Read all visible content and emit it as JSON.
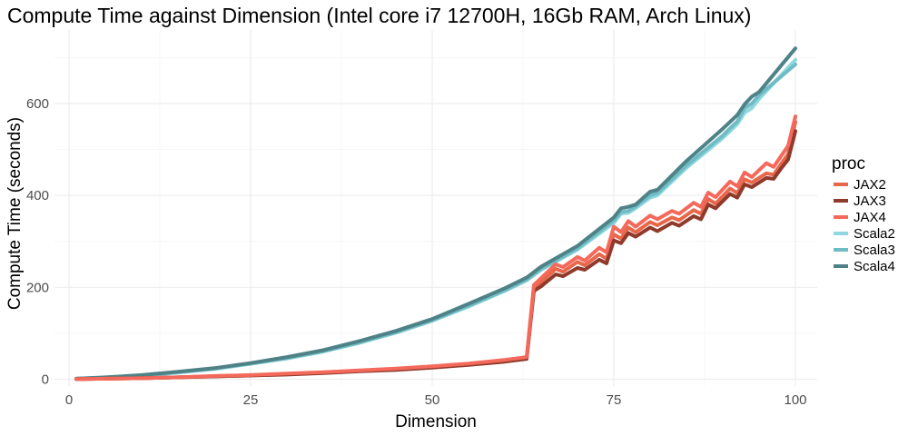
{
  "chart_data": {
    "type": "line",
    "title": "Compute Time against Dimension (Intel core i7 12700H, 16Gb RAM, Arch Linux)",
    "xlabel": "Dimension",
    "ylabel": "Compute Time (seconds)",
    "xlim": [
      -2,
      103
    ],
    "ylim": [
      -15,
      760
    ],
    "x_ticks": [
      0,
      25,
      50,
      75,
      100
    ],
    "y_ticks": [
      0,
      200,
      400,
      600
    ],
    "x_minor": [
      12.5,
      37.5,
      62.5,
      87.5
    ],
    "y_minor": [
      100,
      300,
      500,
      700
    ],
    "grid": true,
    "legend_title": "proc",
    "legend_position": "right",
    "series": [
      {
        "name": "JAX2",
        "color": "#e8674a",
        "x": [
          1,
          5,
          10,
          15,
          20,
          25,
          30,
          35,
          40,
          45,
          50,
          55,
          60,
          63,
          64,
          65,
          67,
          68,
          70,
          71,
          73,
          74,
          75,
          76,
          77,
          78,
          80,
          81,
          83,
          84,
          86,
          87,
          88,
          89,
          91,
          92,
          93,
          94,
          96,
          97,
          98,
          99,
          100
        ],
        "y": [
          0,
          1,
          2,
          4,
          6,
          8,
          11,
          14,
          18,
          21,
          26,
          32,
          40,
          46,
          198,
          212,
          240,
          234,
          255,
          248,
          272,
          262,
          315,
          306,
          330,
          320,
          342,
          335,
          352,
          346,
          368,
          360,
          392,
          382,
          415,
          405,
          435,
          428,
          448,
          445,
          468,
          490,
          560
        ]
      },
      {
        "name": "JAX3",
        "color": "#8f3a2b",
        "x": [
          1,
          5,
          10,
          15,
          20,
          25,
          30,
          35,
          40,
          45,
          50,
          55,
          60,
          63,
          64,
          65,
          67,
          68,
          70,
          71,
          73,
          74,
          75,
          76,
          77,
          78,
          80,
          81,
          83,
          84,
          86,
          87,
          88,
          89,
          91,
          92,
          93,
          94,
          96,
          97,
          98,
          99,
          100
        ],
        "y": [
          0,
          1,
          2,
          4,
          6,
          8,
          10,
          13,
          17,
          20,
          25,
          31,
          38,
          44,
          192,
          202,
          228,
          224,
          242,
          238,
          260,
          252,
          302,
          296,
          318,
          310,
          330,
          322,
          340,
          334,
          355,
          348,
          380,
          372,
          403,
          395,
          424,
          418,
          438,
          436,
          458,
          478,
          540
        ]
      },
      {
        "name": "JAX4",
        "color": "#f4695b",
        "x": [
          1,
          5,
          10,
          15,
          20,
          25,
          30,
          35,
          40,
          45,
          50,
          55,
          60,
          63,
          64,
          65,
          67,
          68,
          70,
          71,
          73,
          74,
          75,
          76,
          77,
          78,
          80,
          81,
          83,
          84,
          86,
          87,
          88,
          89,
          91,
          92,
          93,
          94,
          96,
          97,
          98,
          99,
          100
        ],
        "y": [
          0,
          1,
          2,
          4,
          7,
          9,
          12,
          15,
          19,
          23,
          28,
          34,
          42,
          48,
          205,
          220,
          250,
          244,
          266,
          258,
          286,
          276,
          332,
          320,
          344,
          332,
          356,
          348,
          366,
          360,
          384,
          375,
          406,
          396,
          430,
          420,
          450,
          440,
          470,
          462,
          485,
          508,
          572
        ]
      },
      {
        "name": "Scala2",
        "color": "#8fd8e0",
        "x": [
          1,
          5,
          10,
          15,
          20,
          25,
          30,
          35,
          40,
          45,
          50,
          55,
          60,
          63,
          65,
          70,
          75,
          76,
          77,
          78,
          80,
          81,
          85,
          90,
          91,
          92,
          93,
          94,
          95,
          100
        ],
        "y": [
          1,
          3,
          7,
          14,
          22,
          33,
          45,
          60,
          79,
          101,
          127,
          158,
          192,
          215,
          238,
          282,
          340,
          360,
          362,
          372,
          395,
          400,
          460,
          525,
          540,
          555,
          580,
          590,
          610,
          695
        ]
      },
      {
        "name": "Scala3",
        "color": "#6fbcc4",
        "x": [
          1,
          5,
          10,
          15,
          20,
          25,
          30,
          35,
          40,
          45,
          50,
          55,
          60,
          63,
          65,
          70,
          75,
          76,
          77,
          78,
          80,
          81,
          85,
          90,
          91,
          92,
          93,
          94,
          95,
          100
        ],
        "y": [
          1,
          3,
          8,
          15,
          23,
          34,
          46,
          61,
          80,
          102,
          128,
          160,
          194,
          217,
          240,
          285,
          345,
          364,
          366,
          376,
          400,
          405,
          465,
          530,
          546,
          561,
          590,
          600,
          618,
          685
        ]
      },
      {
        "name": "Scala4",
        "color": "#4f8287",
        "x": [
          1,
          5,
          10,
          15,
          20,
          25,
          30,
          35,
          40,
          45,
          50,
          55,
          60,
          63,
          65,
          70,
          75,
          76,
          77,
          78,
          80,
          81,
          85,
          90,
          91,
          92,
          93,
          94,
          95,
          100
        ],
        "y": [
          1,
          4,
          9,
          16,
          24,
          35,
          48,
          63,
          83,
          105,
          131,
          164,
          198,
          221,
          245,
          290,
          352,
          372,
          375,
          380,
          408,
          412,
          475,
          545,
          560,
          575,
          598,
          615,
          625,
          720
        ]
      }
    ]
  }
}
